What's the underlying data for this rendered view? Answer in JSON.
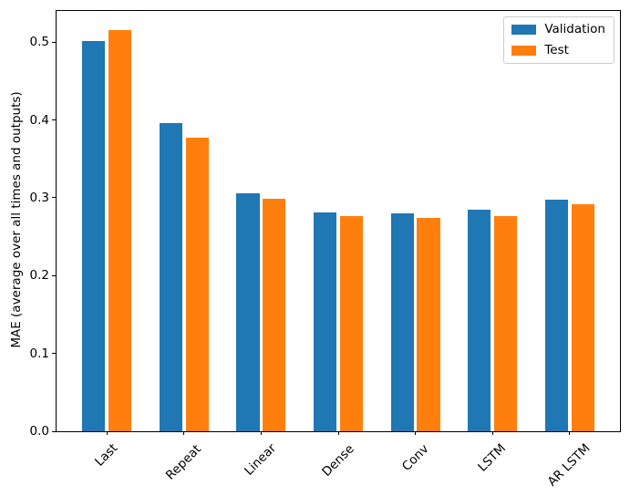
{
  "chart_data": {
    "type": "bar",
    "title": "",
    "xlabel": "",
    "ylabel": "MAE (average over all times and outputs)",
    "categories": [
      "Last",
      "Repeat",
      "Linear",
      "Dense",
      "Conv",
      "LSTM",
      "AR LSTM"
    ],
    "series": [
      {
        "name": "Validation",
        "color": "#1f77b4",
        "values": [
          0.501,
          0.396,
          0.306,
          0.281,
          0.28,
          0.285,
          0.298
        ]
      },
      {
        "name": "Test",
        "color": "#ff7f0e",
        "values": [
          0.516,
          0.377,
          0.299,
          0.277,
          0.274,
          0.276,
          0.292
        ]
      }
    ],
    "ylim": [
      0.0,
      0.54
    ],
    "yticks": [
      "0.0",
      "0.1",
      "0.2",
      "0.3",
      "0.4",
      "0.5"
    ],
    "xtick_rotation_deg": 45,
    "grid": false,
    "legend": {
      "position": "upper-right"
    },
    "bar_group": {
      "bar_width_units": 0.3,
      "offset_units": 0.17
    }
  }
}
